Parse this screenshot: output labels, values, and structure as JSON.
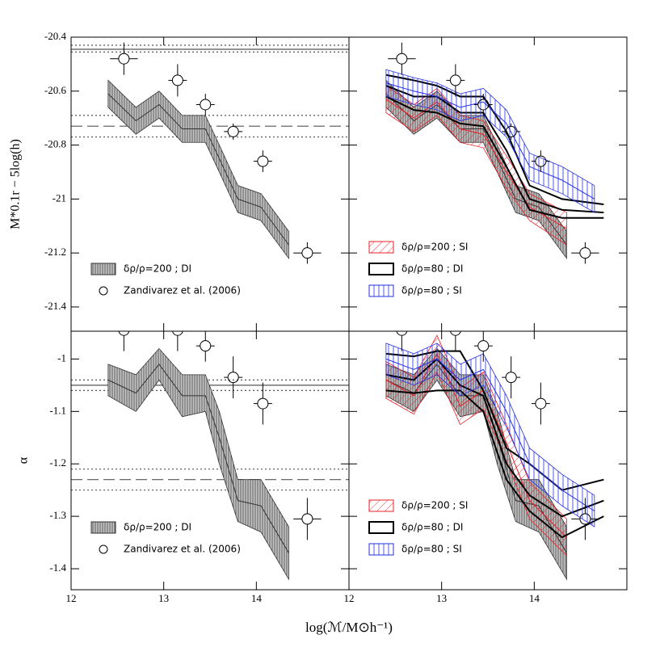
{
  "figure": {
    "xlabel": "log(ℳ/M⊙h⁻¹)"
  },
  "chart_data": [
    {
      "type": "line",
      "ylabel": "M*0.1r − 5log(h)",
      "xlim": [
        12,
        15
      ],
      "ylim": [
        -21.49,
        -20.4
      ],
      "yticks": [
        -20.4,
        -20.6,
        -20.8,
        -21,
        -21.2,
        -21.4
      ],
      "legend": "lower left",
      "hlines": [
        {
          "value": -20.43,
          "style": "dotted"
        },
        {
          "value": -20.445,
          "style": "solid"
        },
        {
          "value": -20.455,
          "style": "dotted"
        },
        {
          "value": -20.69,
          "style": "dotted"
        },
        {
          "value": -20.73,
          "style": "dashed"
        },
        {
          "value": -20.77,
          "style": "dotted"
        }
      ],
      "series": [
        {
          "name": "δρ/ρ=200 ; DI",
          "style": "band",
          "color": "#333333",
          "pattern": "vertical",
          "x": [
            12.4,
            12.7,
            12.95,
            13.2,
            13.45,
            13.6,
            13.8,
            14.05,
            14.35
          ],
          "values": [
            -20.61,
            -20.71,
            -20.65,
            -20.74,
            -20.74,
            -20.85,
            -21.0,
            -21.03,
            -21.17
          ],
          "lower": [
            -20.66,
            -20.76,
            -20.7,
            -20.79,
            -20.79,
            -20.9,
            -21.05,
            -21.08,
            -21.22
          ],
          "upper": [
            -20.56,
            -20.66,
            -20.6,
            -20.69,
            -20.69,
            -20.8,
            -20.95,
            -20.98,
            -21.12
          ]
        },
        {
          "name": "Zandivarez et al. (2006)",
          "style": "points",
          "color": "#000000",
          "x": [
            12.57,
            13.15,
            13.45,
            13.75,
            14.07,
            14.55
          ],
          "xerr": [
            0.15,
            0.1,
            0.1,
            0.1,
            0.1,
            0.15
          ],
          "values": [
            -20.48,
            -20.56,
            -20.65,
            -20.75,
            -20.86,
            -21.2
          ],
          "yerr": [
            0.06,
            0.06,
            0.04,
            0.03,
            0.04,
            0.04
          ]
        }
      ]
    },
    {
      "type": "line",
      "xlim": [
        12,
        15
      ],
      "ylim": [
        -21.49,
        -20.4
      ],
      "legend": "lower left",
      "series": [
        {
          "style": "band",
          "color": "#333333",
          "pattern": "vertical",
          "x": [
            12.4,
            12.7,
            12.95,
            13.2,
            13.45,
            13.6,
            13.8,
            14.05,
            14.35
          ],
          "values": [
            -20.61,
            -20.71,
            -20.65,
            -20.74,
            -20.74,
            -20.85,
            -21.0,
            -21.03,
            -21.17
          ],
          "lower": [
            -20.66,
            -20.76,
            -20.7,
            -20.79,
            -20.79,
            -20.9,
            -21.05,
            -21.08,
            -21.22
          ],
          "upper": [
            -20.56,
            -20.66,
            -20.6,
            -20.69,
            -20.69,
            -20.8,
            -20.95,
            -20.98,
            -21.12
          ]
        },
        {
          "name": "δρ/ρ=200 ; SI",
          "style": "band",
          "color": "#e8202a",
          "pattern": "diagonal",
          "x": [
            12.4,
            12.7,
            12.95,
            13.2,
            13.45,
            13.7,
            13.95,
            14.35
          ],
          "values": [
            -20.63,
            -20.7,
            -20.64,
            -20.74,
            -20.76,
            -20.9,
            -21.03,
            -21.11
          ],
          "lower": [
            -20.68,
            -20.75,
            -20.69,
            -20.79,
            -20.81,
            -20.96,
            -21.08,
            -21.17
          ],
          "upper": [
            -20.58,
            -20.65,
            -20.59,
            -20.69,
            -20.71,
            -20.84,
            -20.98,
            -21.05
          ]
        },
        {
          "name": "δρ/ρ=80 ; DI",
          "style": "lines",
          "color": "#000000",
          "x": [
            12.4,
            12.7,
            12.95,
            13.2,
            13.45,
            13.7,
            13.95,
            14.3,
            14.75
          ],
          "values": [
            -20.58,
            -20.62,
            -20.62,
            -20.68,
            -20.68,
            -20.82,
            -21.0,
            -21.04,
            -21.05
          ],
          "lower": [
            -20.62,
            -20.67,
            -20.68,
            -20.72,
            -20.73,
            -20.88,
            -21.04,
            -21.07,
            -21.07
          ],
          "upper": [
            -20.54,
            -20.56,
            -20.58,
            -20.62,
            -20.62,
            -20.75,
            -20.95,
            -21.0,
            -21.02
          ]
        },
        {
          "name": "δρ/ρ=80 ; SI",
          "style": "band",
          "color": "#2530e0",
          "pattern": "vertical",
          "x": [
            12.4,
            12.7,
            12.95,
            13.2,
            13.45,
            13.7,
            13.95,
            14.3,
            14.65
          ],
          "values": [
            -20.57,
            -20.6,
            -20.62,
            -20.66,
            -20.64,
            -20.72,
            -20.88,
            -20.93,
            -21.0
          ],
          "lower": [
            -20.62,
            -20.65,
            -20.67,
            -20.71,
            -20.69,
            -20.77,
            -20.93,
            -20.98,
            -21.05
          ],
          "upper": [
            -20.52,
            -20.55,
            -20.57,
            -20.61,
            -20.59,
            -20.67,
            -20.83,
            -20.88,
            -20.95
          ]
        },
        {
          "style": "points",
          "color": "#000000",
          "x": [
            12.57,
            13.15,
            13.45,
            13.75,
            14.07,
            14.55
          ],
          "xerr": [
            0.15,
            0.1,
            0.1,
            0.1,
            0.1,
            0.15
          ],
          "values": [
            -20.48,
            -20.56,
            -20.65,
            -20.75,
            -20.86,
            -21.2
          ],
          "yerr": [
            0.06,
            0.06,
            0.04,
            0.03,
            0.04,
            0.04
          ]
        }
      ]
    },
    {
      "type": "line",
      "ylabel": "α",
      "xlim": [
        12,
        15
      ],
      "ylim": [
        -1.44,
        -0.947
      ],
      "xticks": [
        12,
        13,
        14
      ],
      "yticks": [
        -1,
        -1.1,
        -1.2,
        -1.3,
        -1.4
      ],
      "legend": "lower left",
      "hlines": [
        {
          "value": -1.04,
          "style": "dotted"
        },
        {
          "value": -1.05,
          "style": "solid"
        },
        {
          "value": -1.06,
          "style": "dotted"
        },
        {
          "value": -1.21,
          "style": "dotted"
        },
        {
          "value": -1.23,
          "style": "dashed"
        },
        {
          "value": -1.25,
          "style": "dotted"
        }
      ],
      "series": [
        {
          "name": "δρ/ρ=200 ; DI",
          "style": "band",
          "color": "#333333",
          "pattern": "vertical",
          "x": [
            12.4,
            12.7,
            12.95,
            13.2,
            13.45,
            13.6,
            13.8,
            14.05,
            14.35
          ],
          "values": [
            -1.04,
            -1.065,
            -1.01,
            -1.07,
            -1.07,
            -1.15,
            -1.27,
            -1.28,
            -1.37
          ],
          "lower": [
            -1.07,
            -1.1,
            -1.04,
            -1.11,
            -1.1,
            -1.2,
            -1.31,
            -1.33,
            -1.42
          ],
          "upper": [
            -1.01,
            -1.03,
            -0.98,
            -1.03,
            -1.03,
            -1.1,
            -1.23,
            -1.23,
            -1.32
          ]
        },
        {
          "name": "Zandivarez et al. (2006)",
          "style": "points",
          "color": "#000000",
          "x": [
            12.57,
            13.15,
            13.45,
            13.75,
            14.07,
            14.55
          ],
          "xerr": [
            0.15,
            0.1,
            0.1,
            0.1,
            0.1,
            0.15
          ],
          "values": [
            -0.945,
            -0.945,
            -0.975,
            -1.035,
            -1.085,
            -1.305
          ],
          "yerr": [
            0.04,
            0.04,
            0.03,
            0.04,
            0.04,
            0.04
          ]
        }
      ]
    },
    {
      "type": "line",
      "xlim": [
        12,
        15
      ],
      "ylim": [
        -1.44,
        -0.947
      ],
      "xticks": [
        12,
        13,
        14
      ],
      "legend": "lower left",
      "series": [
        {
          "style": "band",
          "color": "#333333",
          "pattern": "vertical",
          "x": [
            12.4,
            12.7,
            12.95,
            13.2,
            13.45,
            13.6,
            13.8,
            14.05,
            14.35
          ],
          "values": [
            -1.04,
            -1.065,
            -1.01,
            -1.07,
            -1.07,
            -1.15,
            -1.27,
            -1.28,
            -1.37
          ],
          "lower": [
            -1.07,
            -1.1,
            -1.04,
            -1.11,
            -1.1,
            -1.2,
            -1.31,
            -1.33,
            -1.42
          ],
          "upper": [
            -1.01,
            -1.03,
            -0.98,
            -1.03,
            -1.03,
            -1.1,
            -1.23,
            -1.23,
            -1.32
          ]
        },
        {
          "name": "δρ/ρ=200 ; SI",
          "style": "band",
          "color": "#e8202a",
          "pattern": "diagonal",
          "x": [
            12.4,
            12.7,
            12.95,
            13.2,
            13.45,
            13.7,
            13.95,
            14.35
          ],
          "values": [
            -1.04,
            -1.07,
            -0.99,
            -1.09,
            -1.06,
            -1.16,
            -1.27,
            -1.34
          ],
          "lower": [
            -1.075,
            -1.105,
            -1.025,
            -1.125,
            -1.095,
            -1.195,
            -1.305,
            -1.375
          ],
          "upper": [
            -1.005,
            -1.035,
            -0.955,
            -1.055,
            -1.025,
            -1.125,
            -1.235,
            -1.305
          ]
        },
        {
          "name": "δρ/ρ=80 ; DI",
          "style": "lines",
          "color": "#000000",
          "x": [
            12.4,
            12.7,
            12.95,
            13.2,
            13.45,
            13.7,
            13.95,
            14.3,
            14.75
          ],
          "values": [
            -1.03,
            -1.04,
            -1.0,
            -1.05,
            -1.07,
            -1.2,
            -1.26,
            -1.3,
            -1.27
          ],
          "lower": [
            -1.06,
            -1.065,
            -1.06,
            -1.06,
            -1.1,
            -1.23,
            -1.29,
            -1.34,
            -1.3
          ],
          "upper": [
            -0.99,
            -0.995,
            -0.985,
            -0.985,
            -1.06,
            -1.17,
            -1.2,
            -1.25,
            -1.23
          ]
        },
        {
          "name": "δρ/ρ=80 ; SI",
          "style": "band",
          "color": "#2530e0",
          "pattern": "vertical",
          "x": [
            12.4,
            12.7,
            12.95,
            13.2,
            13.45,
            13.7,
            13.95,
            14.3,
            14.65
          ],
          "values": [
            -1.0,
            -1.02,
            -1.0,
            -1.04,
            -1.02,
            -1.1,
            -1.2,
            -1.25,
            -1.29
          ],
          "lower": [
            -1.03,
            -1.05,
            -1.03,
            -1.07,
            -1.05,
            -1.13,
            -1.23,
            -1.28,
            -1.32
          ],
          "upper": [
            -0.97,
            -0.99,
            -0.97,
            -1.01,
            -0.99,
            -1.07,
            -1.17,
            -1.22,
            -1.26
          ]
        },
        {
          "style": "points",
          "color": "#000000",
          "x": [
            12.57,
            13.15,
            13.45,
            13.75,
            14.07,
            14.55
          ],
          "xerr": [
            0.15,
            0.1,
            0.1,
            0.1,
            0.1,
            0.15
          ],
          "values": [
            -0.945,
            -0.945,
            -0.975,
            -1.035,
            -1.085,
            -1.305
          ],
          "yerr": [
            0.04,
            0.04,
            0.03,
            0.04,
            0.04,
            0.04
          ]
        }
      ]
    }
  ]
}
